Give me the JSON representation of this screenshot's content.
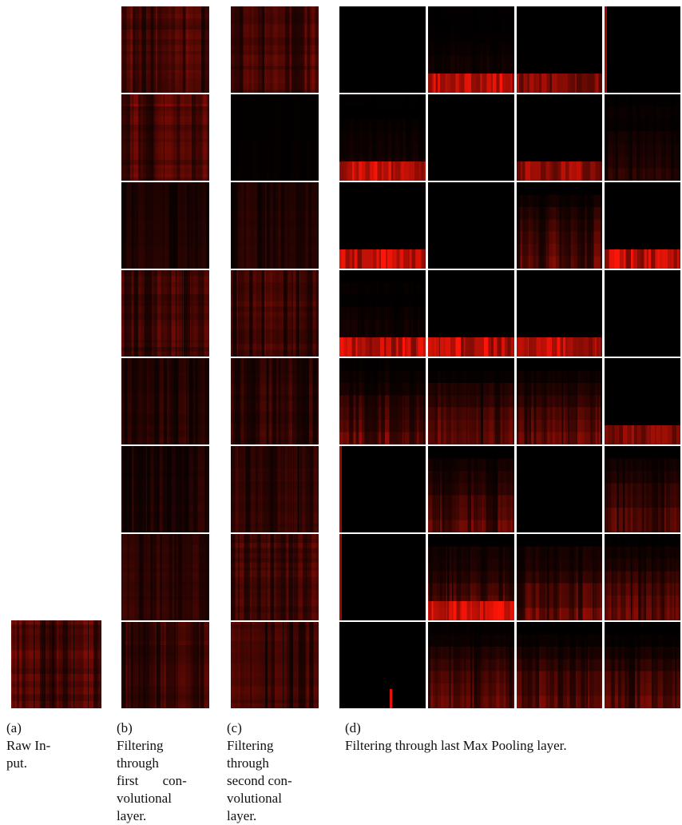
{
  "figure": {
    "panels": [
      {
        "id": "a",
        "tag": "(a)",
        "lines": [
          "Raw In-",
          "put."
        ]
      },
      {
        "id": "b",
        "tag": "(b)",
        "lines": [
          "Filtering",
          "through",
          "first con-",
          "volutional",
          "layer."
        ]
      },
      {
        "id": "c",
        "tag": "(c)",
        "lines": [
          "Filtering",
          "through",
          "second con-",
          "volutional",
          "layer."
        ]
      },
      {
        "id": "d",
        "tag": "(d)",
        "lines": [
          "Filtering through last Max Pooling layer."
        ]
      }
    ],
    "tile_palette": {
      "background": "#000000",
      "activation": "#ff1a0a"
    }
  }
}
